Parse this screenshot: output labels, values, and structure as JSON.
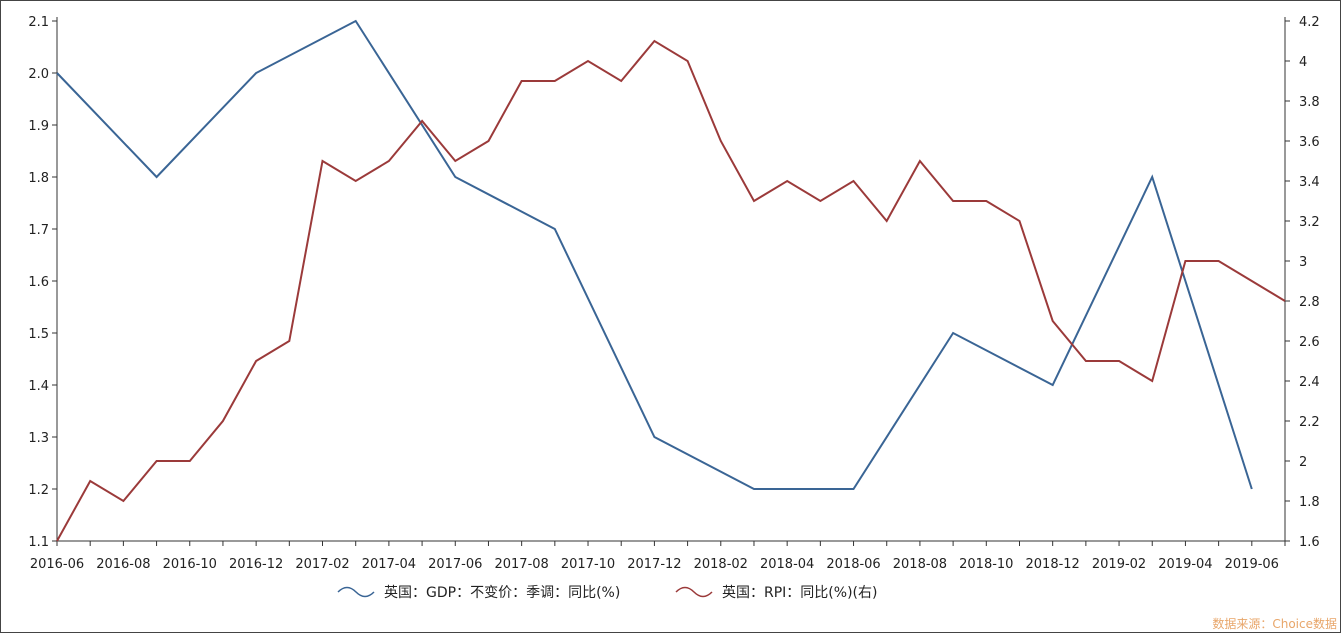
{
  "chart_data": {
    "type": "line",
    "x": [
      "2016-06",
      "2016-07",
      "2016-08",
      "2016-09",
      "2016-10",
      "2016-11",
      "2016-12",
      "2017-01",
      "2017-02",
      "2017-03",
      "2017-04",
      "2017-05",
      "2017-06",
      "2017-07",
      "2017-08",
      "2017-09",
      "2017-10",
      "2017-11",
      "2017-12",
      "2018-01",
      "2018-02",
      "2018-03",
      "2018-04",
      "2018-05",
      "2018-06",
      "2018-07",
      "2018-08",
      "2018-09",
      "2018-10",
      "2018-11",
      "2018-12",
      "2019-01",
      "2019-02",
      "2019-03",
      "2019-04",
      "2019-05",
      "2019-06",
      "2019-07"
    ],
    "x_tick_labels": [
      "2016-06",
      "2016-08",
      "2016-10",
      "2016-12",
      "2017-02",
      "2017-04",
      "2017-06",
      "2017-08",
      "2017-10",
      "2017-12",
      "2018-02",
      "2018-04",
      "2018-06",
      "2018-08",
      "2018-10",
      "2018-12",
      "2019-02",
      "2019-04",
      "2019-06"
    ],
    "series": [
      {
        "name": "英国：GDP：不变价：季调：同比(%)",
        "axis": "left",
        "color": "#3a6595",
        "points": [
          {
            "x": "2016-06",
            "y": 2.0
          },
          {
            "x": "2016-09",
            "y": 1.8
          },
          {
            "x": "2016-12",
            "y": 2.0
          },
          {
            "x": "2017-03",
            "y": 2.1
          },
          {
            "x": "2017-06",
            "y": 1.8
          },
          {
            "x": "2017-09",
            "y": 1.7
          },
          {
            "x": "2017-12",
            "y": 1.3
          },
          {
            "x": "2018-03",
            "y": 1.2
          },
          {
            "x": "2018-06",
            "y": 1.2
          },
          {
            "x": "2018-09",
            "y": 1.5
          },
          {
            "x": "2018-12",
            "y": 1.4
          },
          {
            "x": "2019-03",
            "y": 1.8
          },
          {
            "x": "2019-06",
            "y": 1.2
          }
        ]
      },
      {
        "name": "英国：RPI：同比(%)(右)",
        "axis": "right",
        "color": "#9b3a3a",
        "points": [
          {
            "x": "2016-06",
            "y": 1.6
          },
          {
            "x": "2016-07",
            "y": 1.9
          },
          {
            "x": "2016-08",
            "y": 1.8
          },
          {
            "x": "2016-09",
            "y": 2.0
          },
          {
            "x": "2016-10",
            "y": 2.0
          },
          {
            "x": "2016-11",
            "y": 2.2
          },
          {
            "x": "2016-12",
            "y": 2.5
          },
          {
            "x": "2017-01",
            "y": 2.6
          },
          {
            "x": "2017-02",
            "y": 3.5
          },
          {
            "x": "2017-03",
            "y": 3.4
          },
          {
            "x": "2017-04",
            "y": 3.5
          },
          {
            "x": "2017-05",
            "y": 3.7
          },
          {
            "x": "2017-06",
            "y": 3.5
          },
          {
            "x": "2017-07",
            "y": 3.6
          },
          {
            "x": "2017-08",
            "y": 3.9
          },
          {
            "x": "2017-09",
            "y": 3.9
          },
          {
            "x": "2017-10",
            "y": 4.0
          },
          {
            "x": "2017-11",
            "y": 3.9
          },
          {
            "x": "2017-12",
            "y": 4.1
          },
          {
            "x": "2018-01",
            "y": 4.0
          },
          {
            "x": "2018-02",
            "y": 3.6
          },
          {
            "x": "2018-03",
            "y": 3.3
          },
          {
            "x": "2018-04",
            "y": 3.4
          },
          {
            "x": "2018-05",
            "y": 3.3
          },
          {
            "x": "2018-06",
            "y": 3.4
          },
          {
            "x": "2018-07",
            "y": 3.2
          },
          {
            "x": "2018-08",
            "y": 3.5
          },
          {
            "x": "2018-09",
            "y": 3.3
          },
          {
            "x": "2018-10",
            "y": 3.3
          },
          {
            "x": "2018-11",
            "y": 3.2
          },
          {
            "x": "2018-12",
            "y": 2.7
          },
          {
            "x": "2019-01",
            "y": 2.5
          },
          {
            "x": "2019-02",
            "y": 2.5
          },
          {
            "x": "2019-03",
            "y": 2.4
          },
          {
            "x": "2019-04",
            "y": 3.0
          },
          {
            "x": "2019-05",
            "y": 3.0
          },
          {
            "x": "2019-06",
            "y": 2.9
          },
          {
            "x": "2019-07",
            "y": 2.8
          }
        ]
      }
    ],
    "y_left": {
      "min": 1.1,
      "max": 2.1,
      "ticks": [
        "1.1",
        "1.2",
        "1.3",
        "1.4",
        "1.5",
        "1.6",
        "1.7",
        "1.8",
        "1.9",
        "2.0",
        "2.1"
      ]
    },
    "y_right": {
      "min": 1.6,
      "max": 4.2,
      "ticks": [
        "1.6",
        "1.8",
        "2",
        "2.2",
        "2.4",
        "2.6",
        "2.8",
        "3",
        "3.2",
        "3.4",
        "3.6",
        "3.8",
        "4",
        "4.2"
      ]
    },
    "grid": false,
    "legend_position": "bottom"
  },
  "source_note": "数据来源：Choice数据"
}
